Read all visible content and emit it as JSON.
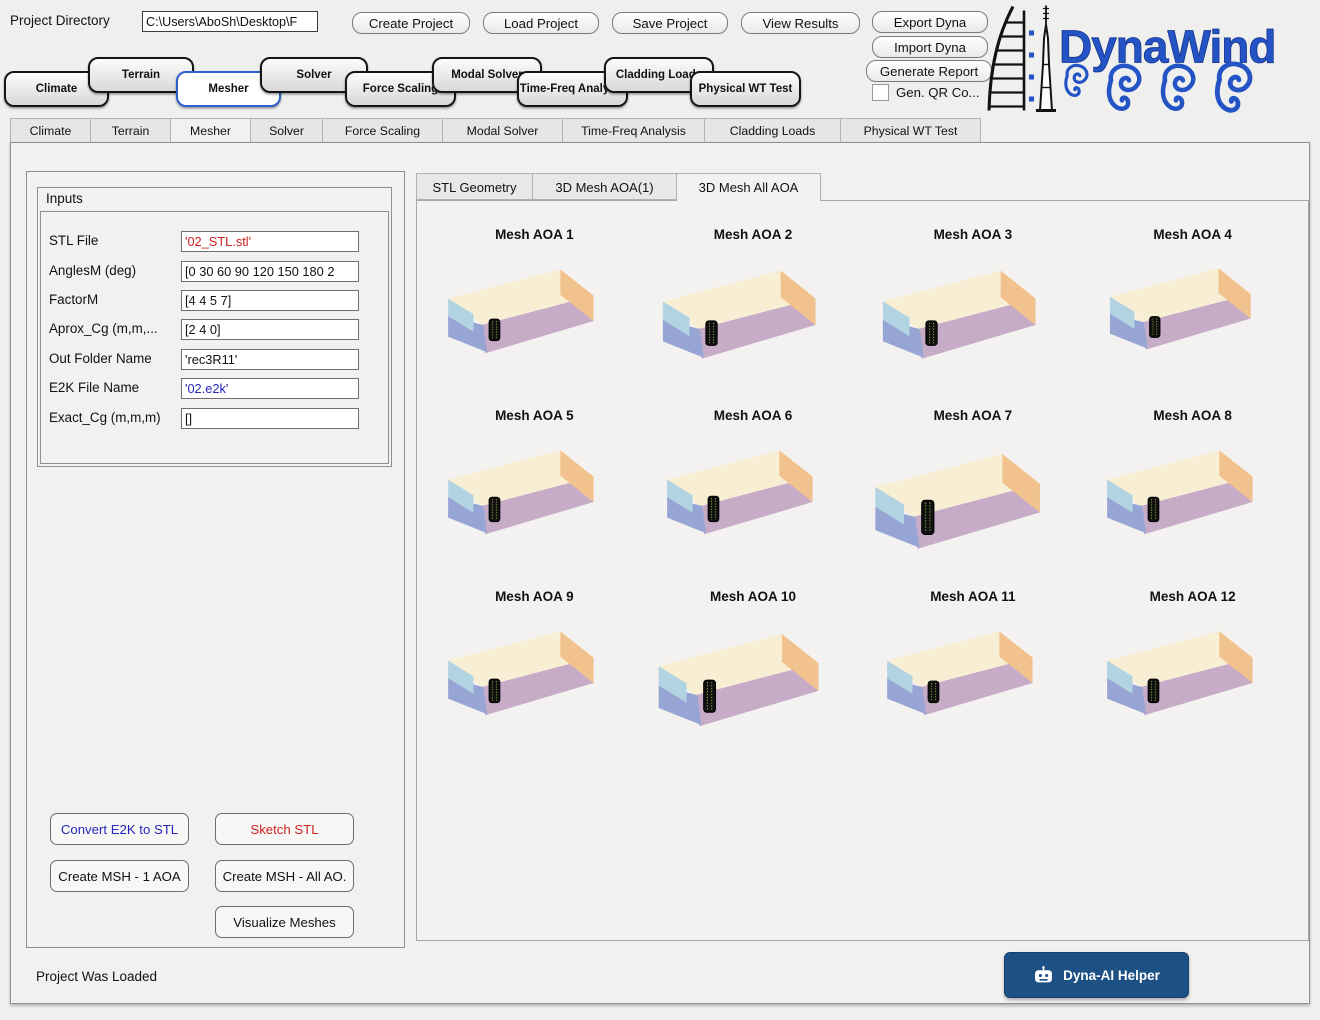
{
  "window": {
    "status_text": "Project Was Loaded"
  },
  "header": {
    "project_directory_label": "Project Directory",
    "project_directory_value": "C:\\Users\\AboSh\\Desktop\\F",
    "action_buttons": [
      "Create Project",
      "Load Project",
      "Save Project",
      "View Results"
    ],
    "io_buttons": [
      "Export Dyna",
      "Import Dyna",
      "Generate Report"
    ],
    "qr_checkbox": {
      "label": "Gen. QR Co...",
      "checked": false
    },
    "logo_text": "DynaWind"
  },
  "nav_buttons": [
    {
      "label": "Climate",
      "selected": false
    },
    {
      "label": "Terrain",
      "selected": false
    },
    {
      "label": "Mesher",
      "selected": true
    },
    {
      "label": "Solver",
      "selected": false
    },
    {
      "label": "Force Scaling",
      "selected": false
    },
    {
      "label": "Modal Solver",
      "selected": false
    },
    {
      "label": "Time-Freq Analysis",
      "selected": false
    },
    {
      "label": "Cladding Loads",
      "selected": false
    },
    {
      "label": "Physical WT Test",
      "selected": false
    }
  ],
  "tabs": [
    {
      "label": "Climate",
      "selected": false
    },
    {
      "label": "Terrain",
      "selected": false
    },
    {
      "label": "Mesher",
      "selected": true
    },
    {
      "label": "Solver",
      "selected": false
    },
    {
      "label": "Force Scaling",
      "selected": false
    },
    {
      "label": "Modal Solver",
      "selected": false
    },
    {
      "label": "Time-Freq Analysis",
      "selected": false
    },
    {
      "label": "Cladding Loads",
      "selected": false
    },
    {
      "label": "Physical WT Test",
      "selected": false
    }
  ],
  "inputs_panel": {
    "title": "Inputs",
    "fields": [
      {
        "label": "STL File",
        "value": "'02_STL.stl'",
        "color": "red"
      },
      {
        "label": "AnglesM (deg)",
        "value": "[0 30 60 90 120 150 180 2",
        "color": "black"
      },
      {
        "label": "FactorM",
        "value": "[4 4 5 7]",
        "color": "black"
      },
      {
        "label": "Aprox_Cg (m,m,...",
        "value": "[2 4 0]",
        "color": "black"
      },
      {
        "label": "Out Folder Name",
        "value": "'rec3R11'",
        "color": "black"
      },
      {
        "label": "E2K File Name",
        "value": "'02.e2k'",
        "color": "blue"
      },
      {
        "label": "Exact_Cg (m,m,m)",
        "value": "[]",
        "color": "black"
      }
    ]
  },
  "action_buttons": [
    {
      "label": "Convert E2K to STL",
      "color": "blue"
    },
    {
      "label": "Sketch STL",
      "color": "red"
    },
    {
      "label": "Create MSH - 1 AOA",
      "color": "black"
    },
    {
      "label": "Create MSH - All AO.",
      "color": "black"
    },
    {
      "label": "Visualize Meshes",
      "color": "black"
    }
  ],
  "mesh_panel": {
    "tabs": [
      {
        "label": "STL Geometry",
        "selected": false
      },
      {
        "label": "3D Mesh AOA(1)",
        "selected": false
      },
      {
        "label": "3D Mesh All AOA",
        "selected": true
      }
    ],
    "meshes": [
      {
        "title": "Mesh AOA 1",
        "s": 1.0,
        "bh": 22
      },
      {
        "title": "Mesh AOA 2",
        "s": 1.05,
        "bh": 24
      },
      {
        "title": "Mesh AOA 3",
        "s": 1.05,
        "bh": 24
      },
      {
        "title": "Mesh AOA 4",
        "s": 0.97,
        "bh": 22
      },
      {
        "title": "Mesh AOA 5",
        "s": 1.0,
        "bh": 25
      },
      {
        "title": "Mesh AOA 6",
        "s": 1.0,
        "bh": 26
      },
      {
        "title": "Mesh AOA 7",
        "s": 1.13,
        "bh": 31
      },
      {
        "title": "Mesh AOA 8",
        "s": 1.0,
        "bh": 25
      },
      {
        "title": "Mesh AOA 9",
        "s": 1.0,
        "bh": 24
      },
      {
        "title": "Mesh AOA 10",
        "s": 1.1,
        "bh": 30
      },
      {
        "title": "Mesh AOA 11",
        "s": 1.0,
        "bh": 22
      },
      {
        "title": "Mesh AOA 12",
        "s": 1.0,
        "bh": 24
      }
    ]
  },
  "ai_button": {
    "label": "Dyna-AI Helper"
  },
  "colors": {
    "accent_blue": "#2353c4",
    "selected_border": "#2f5fc9",
    "ai_button_bg": "#1d5186",
    "red_text": "#cc2222",
    "blue_text": "#2525bb",
    "box_top": "#f8eed4",
    "box_right": "#f1c28e",
    "box_floor": "#c7acc8",
    "box_left_light": "#b2d3e1",
    "box_left_dark": "#97a5d5",
    "building": "#111111",
    "building_mesh": "#8aa43e"
  }
}
